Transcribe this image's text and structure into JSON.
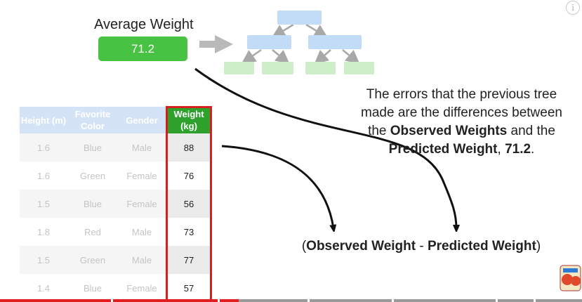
{
  "average": {
    "title": "Average Weight",
    "value": "71.2"
  },
  "explanation": {
    "line1": "The errors that the previous tree",
    "line2": "made are the differences between",
    "line3_pre": "the ",
    "line3_bold": "Observed Weights",
    "line3_post": " and the",
    "line4_bold1": "Predicted Weight",
    "line4_mid": ", ",
    "line4_bold2": "71.2",
    "line4_post": "."
  },
  "formula": {
    "open": "(",
    "observed": "Observed Weight",
    "minus": " - ",
    "predicted": "Predicted Weight",
    "close": ")"
  },
  "table": {
    "headers": [
      "Height (m)",
      "Favorite Color",
      "Gender",
      "Weight (kg)"
    ],
    "rows": [
      [
        "1.6",
        "Blue",
        "Male",
        "88"
      ],
      [
        "1.6",
        "Green",
        "Female",
        "76"
      ],
      [
        "1.5",
        "Blue",
        "Female",
        "56"
      ],
      [
        "1.8",
        "Red",
        "Male",
        "73"
      ],
      [
        "1.5",
        "Green",
        "Male",
        "77"
      ],
      [
        "1.4",
        "Blue",
        "Female",
        "57"
      ]
    ]
  },
  "player": {
    "info_icon": "i",
    "progress_fraction": 0.41
  },
  "colors": {
    "accent_green": "#48c243",
    "highlight_red": "#d62020",
    "node_blue": "#c2dcf8",
    "node_green": "#cdeec8"
  }
}
